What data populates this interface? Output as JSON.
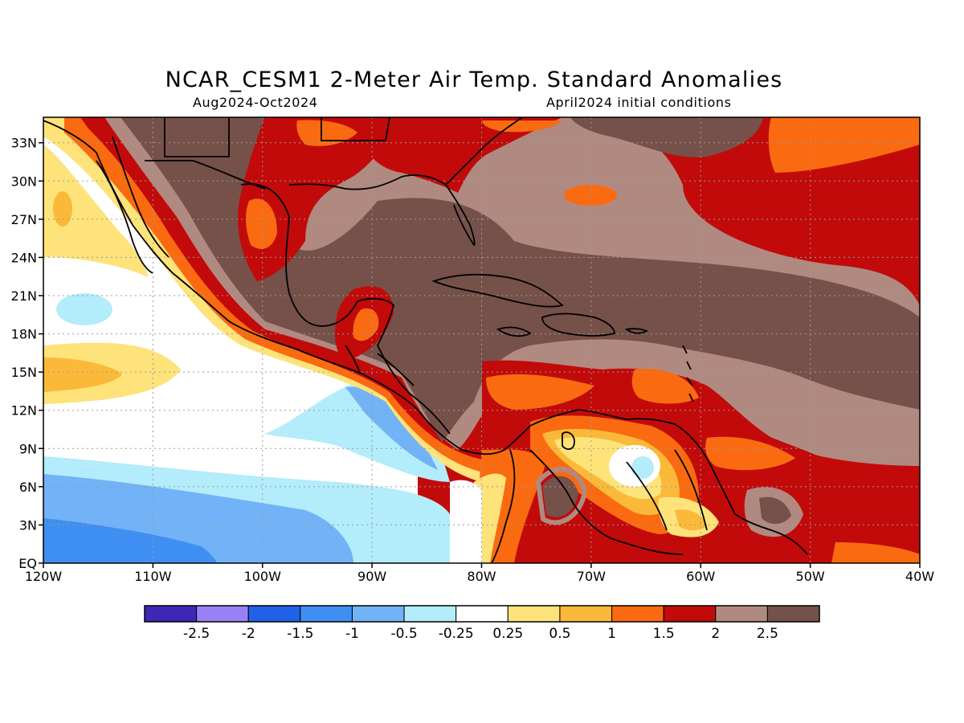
{
  "header": {
    "title": "NCAR_CESM1 2-Meter Air Temp. Standard Anomalies",
    "period": "Aug2024-Oct2024",
    "init": "April2024 initial conditions"
  },
  "map": {
    "lat_labels": [
      "33N",
      "30N",
      "27N",
      "24N",
      "21N",
      "18N",
      "15N",
      "12N",
      "9N",
      "6N",
      "3N",
      "EQ"
    ],
    "lat_values": [
      33,
      30,
      27,
      24,
      21,
      18,
      15,
      12,
      9,
      6,
      3,
      0
    ],
    "lon_labels": [
      "120W",
      "110W",
      "100W",
      "90W",
      "80W",
      "70W",
      "60W",
      "50W",
      "40W"
    ],
    "lon_values": [
      -120,
      -110,
      -100,
      -90,
      -80,
      -70,
      -60,
      -50,
      -40
    ],
    "extent": {
      "lon": [
        -120,
        -40
      ],
      "lat": [
        0,
        35
      ]
    }
  },
  "legend": {
    "colors": [
      "#3d28b6",
      "#9a80f5",
      "#1f62e8",
      "#3f8ff2",
      "#72b2f7",
      "#b3ecfa",
      "#ffffff",
      "#fde37a",
      "#fbb93a",
      "#fa6a10",
      "#c20a0a",
      "#b08a80",
      "#75514a"
    ],
    "labels": [
      "-2.5",
      "-2",
      "-1.5",
      "-1",
      "-0.5",
      "-0.25",
      "0.25",
      "0.5",
      "1",
      "1.5",
      "2",
      "2.5"
    ]
  }
}
